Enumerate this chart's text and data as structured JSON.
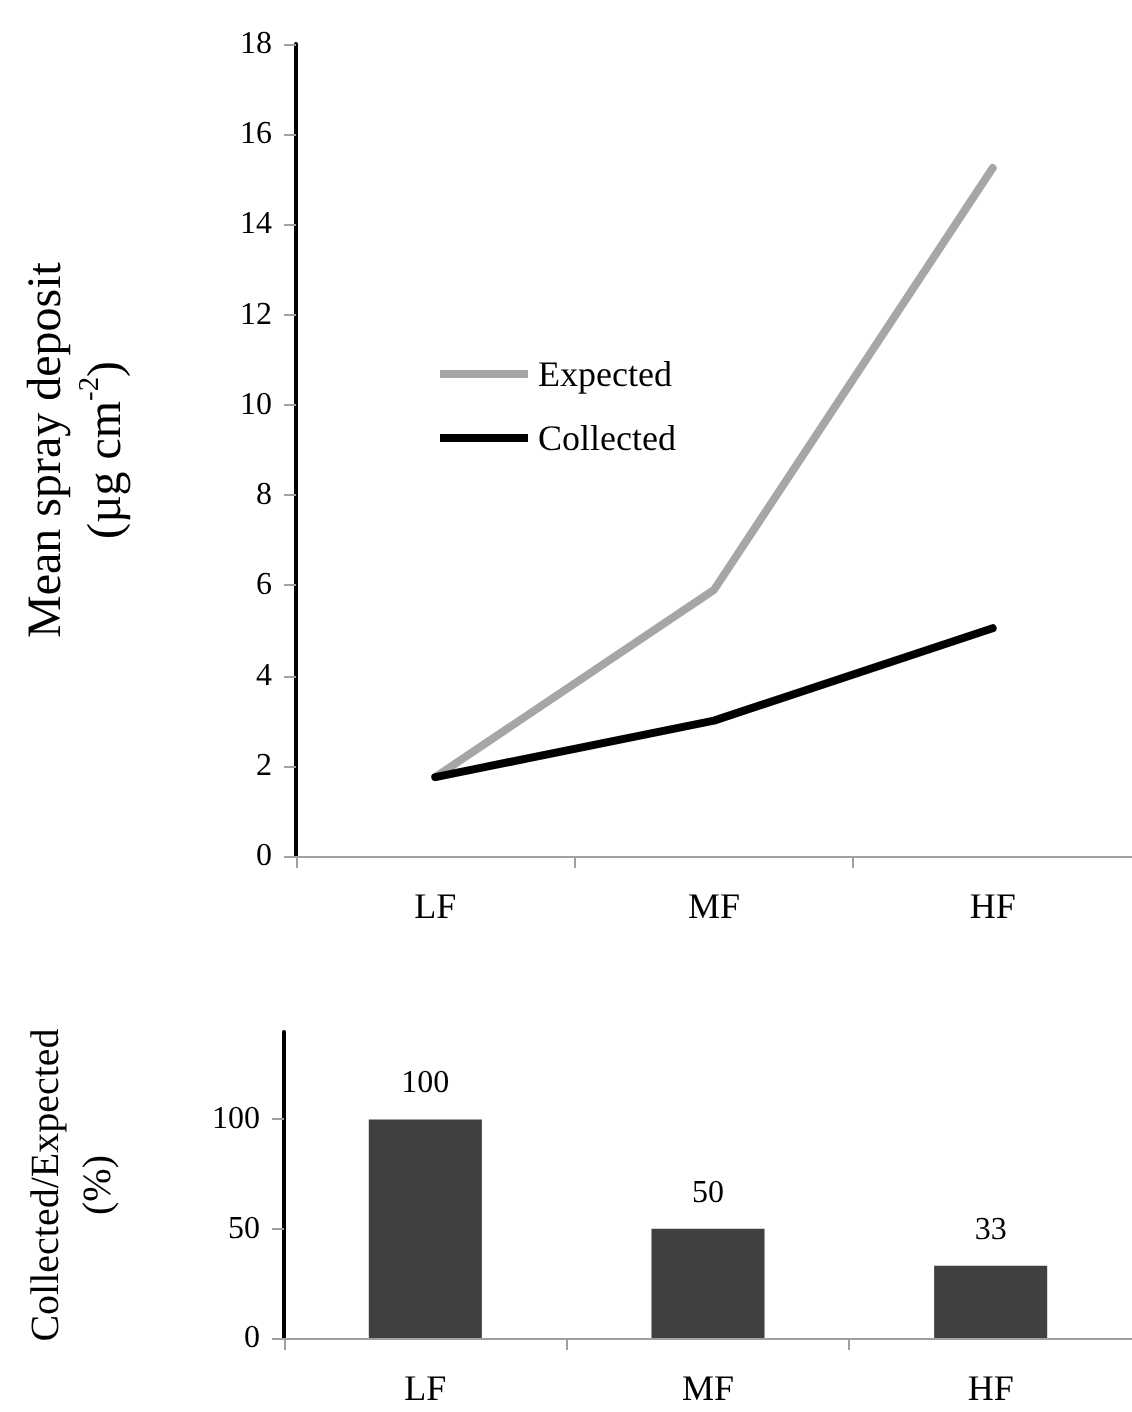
{
  "chart_data": [
    {
      "type": "line",
      "ylabel": "Mean spray deposit\n(µg cm$^{-2}$)",
      "categories": [
        "LF",
        "MF",
        "HF"
      ],
      "series": [
        {
          "name": "Expected",
          "color": "#a6a6a6",
          "values": [
            1.75,
            5.9,
            15.25
          ]
        },
        {
          "name": "Collected",
          "color": "#000000",
          "values": [
            1.75,
            3.0,
            5.05
          ]
        }
      ],
      "ylim": [
        0,
        18
      ],
      "yticks": [
        0,
        2,
        4,
        6,
        8,
        10,
        12,
        14,
        16,
        18
      ],
      "grid": false,
      "legend": "top left",
      "marker": "none",
      "line_style": "solid"
    },
    {
      "type": "bar",
      "ylabel": "Collected/Expected\n(%)",
      "categories": [
        "LF",
        "MF",
        "HF"
      ],
      "values": [
        100,
        50,
        33
      ],
      "color": "#404040",
      "ylim": [
        0,
        140
      ],
      "yticks": [
        0,
        50,
        100
      ],
      "grid": false,
      "data_labels": true
    }
  ]
}
